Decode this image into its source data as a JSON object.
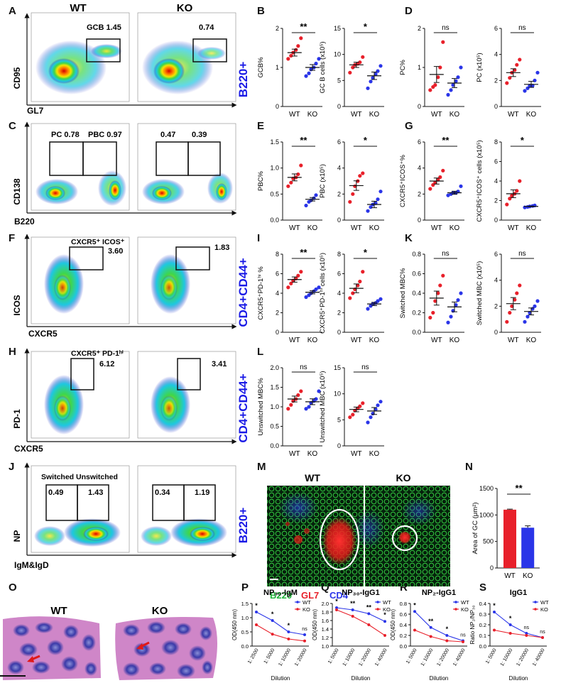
{
  "colors": {
    "wt": "#e8202a",
    "ko": "#2a35e8",
    "blue_label": "#1a1ae6",
    "green": "#1fb53a",
    "he_pink": "#cf86c8",
    "he_purple": "#3a2a9a",
    "black": "#111111"
  },
  "panel_letters": [
    "A",
    "B",
    "C",
    "D",
    "E",
    "F",
    "G",
    "H",
    "I",
    "J",
    "K",
    "L",
    "M",
    "N",
    "O",
    "P",
    "Q",
    "R",
    "S"
  ],
  "flow": {
    "col_wt": "WT",
    "col_ko": "KO",
    "side_labels": [
      "B220+",
      "CD4+CD44+",
      "CD4+CD44+",
      "B220+"
    ],
    "A": {
      "ylab": "CD95",
      "xlab": "GL7",
      "wt_gate": "GCB 1.45",
      "ko_gate": "0.74"
    },
    "C": {
      "ylab": "CD138",
      "xlab": "B220",
      "wt_gate1": "PC 0.78",
      "wt_gate2": "PBC 0.97",
      "ko_gate1": "0.47",
      "ko_gate2": "0.39"
    },
    "F": {
      "ylab": "ICOS",
      "xlab": "CXCR5",
      "wt_gate_name": "CXCR5⁺ ICOS⁺",
      "wt_gate": "3.60",
      "ko_gate": "1.83"
    },
    "H": {
      "ylab": "PD-1",
      "xlab": "CXCR5",
      "wt_gate_name": "CXCR5⁺ PD-1ʰⁱ",
      "wt_gate": "6.12",
      "ko_gate": "3.41"
    },
    "J": {
      "ylab": "NP",
      "xlab": "IgM&IgD",
      "wt_gate_name": "Switched Unswitched",
      "wt_gate1": "0.49",
      "wt_gate2": "1.43",
      "ko_gate1": "0.34",
      "ko_gate2": "1.19"
    }
  },
  "micro": {
    "M": {
      "wt": "WT",
      "ko": "KO",
      "legend": [
        "B220",
        "GL7",
        "CD4"
      ]
    },
    "O": {
      "wt": "WT",
      "ko": "KO"
    }
  },
  "chart_data": [
    {
      "id": "B1",
      "type": "scatter",
      "ylabel": "GCB%",
      "ylim": [
        0,
        2
      ],
      "yticks": [
        "0",
        "1",
        "2"
      ],
      "categories": [
        "WT",
        "KO"
      ],
      "sig": "**",
      "wt": [
        1.22,
        1.3,
        1.38,
        1.45,
        1.55,
        1.75
      ],
      "ko": [
        0.78,
        0.85,
        0.95,
        1.0,
        1.1,
        1.22
      ],
      "wt_mean": 1.38,
      "ko_mean": 1.0
    },
    {
      "id": "B2",
      "type": "scatter",
      "ylabel": "GC B cells (x10⁵)",
      "ylim": [
        0,
        15
      ],
      "yticks": [
        "0",
        "5",
        "10",
        "15"
      ],
      "categories": [
        "WT",
        "KO"
      ],
      "sig": "*",
      "wt": [
        6.5,
        7.5,
        8.0,
        8.2,
        8.5,
        9.5
      ],
      "ko": [
        3.5,
        4.8,
        5.5,
        6.2,
        6.8,
        7.8
      ],
      "wt_mean": 8.0,
      "ko_mean": 5.9
    },
    {
      "id": "D1",
      "type": "scatter",
      "ylabel": "PC%",
      "ylim": [
        0,
        2
      ],
      "yticks": [
        "0",
        "1",
        "2"
      ],
      "categories": [
        "WT",
        "KO"
      ],
      "sig": "ns",
      "wt": [
        0.42,
        0.5,
        0.55,
        0.75,
        1.0,
        1.65
      ],
      "ko": [
        0.3,
        0.42,
        0.55,
        0.65,
        0.75,
        1.0
      ],
      "wt_mean": 0.82,
      "ko_mean": 0.6
    },
    {
      "id": "D2",
      "type": "scatter",
      "ylabel": "PC (x10⁵)",
      "ylim": [
        0,
        6
      ],
      "yticks": [
        "0",
        "2",
        "4",
        "6"
      ],
      "categories": [
        "WT",
        "KO"
      ],
      "sig": "ns",
      "wt": [
        1.8,
        2.2,
        2.6,
        2.8,
        3.2,
        3.6
      ],
      "ko": [
        1.2,
        1.4,
        1.6,
        1.6,
        2.0,
        2.6
      ],
      "wt_mean": 2.6,
      "ko_mean": 1.7
    },
    {
      "id": "E1",
      "type": "scatter",
      "ylabel": "PBC%",
      "ylim": [
        0,
        1.5
      ],
      "yticks": [
        "0.0",
        "0.5",
        "1.0",
        "1.5"
      ],
      "categories": [
        "WT",
        "KO"
      ],
      "sig": "**",
      "wt": [
        0.65,
        0.72,
        0.8,
        0.82,
        0.88,
        1.05
      ],
      "ko": [
        0.28,
        0.35,
        0.38,
        0.42,
        0.48
      ],
      "wt_mean": 0.82,
      "ko_mean": 0.4
    },
    {
      "id": "E2",
      "type": "scatter",
      "ylabel": "PBC (x10⁵)",
      "ylim": [
        0,
        6
      ],
      "yticks": [
        "0",
        "2",
        "4",
        "6"
      ],
      "categories": [
        "WT",
        "KO"
      ],
      "sig": "*",
      "wt": [
        1.4,
        2.0,
        2.6,
        3.0,
        3.4,
        3.6
      ],
      "ko": [
        0.7,
        1.0,
        1.2,
        1.3,
        1.6,
        2.2
      ],
      "wt_mean": 2.65,
      "ko_mean": 1.2
    },
    {
      "id": "G1",
      "type": "scatter",
      "ylabel": "CXCR5⁺ICOS⁺%",
      "ylim": [
        0,
        6
      ],
      "yticks": [
        "0",
        "2",
        "4",
        "6"
      ],
      "categories": [
        "WT",
        "KO"
      ],
      "sig": "**",
      "wt": [
        2.4,
        2.7,
        2.9,
        3.1,
        3.3,
        3.8
      ],
      "ko": [
        1.9,
        2.0,
        2.1,
        2.1,
        2.2,
        2.6
      ],
      "wt_mean": 3.0,
      "ko_mean": 2.1
    },
    {
      "id": "G2",
      "type": "scatter",
      "ylabel": "CXCR5⁺ICOS⁺ cells (x10⁵)",
      "ylim": [
        0,
        8
      ],
      "yticks": [
        "0",
        "2",
        "4",
        "6",
        "8"
      ],
      "categories": [
        "WT",
        "KO"
      ],
      "sig": "*",
      "wt": [
        1.6,
        2.2,
        2.5,
        2.7,
        3.0,
        4.0
      ],
      "ko": [
        1.3,
        1.35,
        1.4,
        1.45,
        1.5
      ],
      "wt_mean": 2.7,
      "ko_mean": 1.4
    },
    {
      "id": "I1",
      "type": "scatter",
      "ylabel": "CXCR5⁺PD-1ʰⁱ %",
      "ylim": [
        0,
        8
      ],
      "yticks": [
        "0",
        "2",
        "4",
        "6",
        "8"
      ],
      "categories": [
        "WT",
        "KO"
      ],
      "sig": "**",
      "wt": [
        4.6,
        5.0,
        5.3,
        5.5,
        5.8,
        6.2
      ],
      "ko": [
        3.6,
        3.8,
        4.0,
        4.2,
        4.4,
        4.6
      ],
      "wt_mean": 5.4,
      "ko_mean": 4.1
    },
    {
      "id": "I2",
      "type": "scatter",
      "ylabel": "CXCR5⁺PD-1ʰⁱ cells (x10⁵)",
      "ylim": [
        0,
        8
      ],
      "yticks": [
        "0",
        "2",
        "4",
        "6",
        "8"
      ],
      "categories": [
        "WT",
        "KO"
      ],
      "sig": "*",
      "wt": [
        3.5,
        4.0,
        4.4,
        4.8,
        5.2,
        6.2
      ],
      "ko": [
        2.4,
        2.7,
        2.9,
        3.0,
        3.2,
        3.4
      ],
      "wt_mean": 4.5,
      "ko_mean": 2.9
    },
    {
      "id": "K1",
      "type": "scatter",
      "ylabel": "Switched MBC%",
      "ylim": [
        0,
        0.8
      ],
      "yticks": [
        "0.0",
        "0.2",
        "0.4",
        "0.6",
        "0.8"
      ],
      "categories": [
        "WT",
        "KO"
      ],
      "sig": "ns",
      "wt": [
        0.15,
        0.2,
        0.32,
        0.4,
        0.48,
        0.58
      ],
      "ko": [
        0.1,
        0.16,
        0.22,
        0.28,
        0.33,
        0.4
      ],
      "wt_mean": 0.35,
      "ko_mean": 0.26
    },
    {
      "id": "K2",
      "type": "scatter",
      "ylabel": "Switched MBC (x10⁵)",
      "ylim": [
        0,
        6
      ],
      "yticks": [
        "0",
        "2",
        "4",
        "6"
      ],
      "categories": [
        "WT",
        "KO"
      ],
      "sig": "ns",
      "wt": [
        0.8,
        1.5,
        2.0,
        2.5,
        3.0,
        3.6
      ],
      "ko": [
        0.8,
        1.2,
        1.5,
        1.8,
        2.0,
        2.4
      ],
      "wt_mean": 2.2,
      "ko_mean": 1.6
    },
    {
      "id": "L1",
      "type": "scatter",
      "ylabel": "Unswitched MBC%",
      "ylim": [
        0,
        2
      ],
      "yticks": [
        "0.0",
        "0.5",
        "1.0",
        "1.5",
        "2.0"
      ],
      "categories": [
        "WT",
        "KO"
      ],
      "sig": "ns",
      "wt": [
        0.95,
        1.05,
        1.15,
        1.2,
        1.3,
        1.4
      ],
      "ko": [
        0.95,
        1.0,
        1.1,
        1.15,
        1.2,
        1.4
      ],
      "wt_mean": 1.2,
      "ko_mean": 1.13
    },
    {
      "id": "L2",
      "type": "scatter",
      "ylabel": "Unswitched MBC (x10⁵)",
      "ylim": [
        0,
        15
      ],
      "yticks": [
        "0",
        "5",
        "10",
        "15"
      ],
      "categories": [
        "WT",
        "KO"
      ],
      "sig": "ns",
      "wt": [
        5.5,
        6.0,
        6.8,
        7.2,
        7.6,
        8.2
      ],
      "ko": [
        4.5,
        5.5,
        6.2,
        7.0,
        7.8,
        8.5
      ],
      "wt_mean": 7.0,
      "ko_mean": 6.7
    },
    {
      "id": "N",
      "type": "bar",
      "ylabel": "Area of GC (μm²)",
      "ylim": [
        0,
        1500
      ],
      "yticks": [
        "0",
        "500",
        "1000",
        "1500"
      ],
      "categories": [
        "WT",
        "KO"
      ],
      "values": [
        1100,
        760
      ],
      "errors": [
        10,
        35
      ],
      "sig": "**"
    },
    {
      "id": "P",
      "type": "line",
      "title": "NP₃₀-IgM",
      "ylabel": "OD(450 nm)",
      "xlabel": "Dilution",
      "ylim": [
        0,
        1.5
      ],
      "yticks": [
        "0.0",
        "0.5",
        "1.0",
        "1.5"
      ],
      "x": [
        "1: 2500",
        "1: 5000",
        "1: 10000",
        "1: 20000"
      ],
      "series": [
        {
          "name": "WT",
          "values": [
            1.2,
            0.9,
            0.5,
            0.4
          ]
        },
        {
          "name": "KO",
          "values": [
            0.75,
            0.42,
            0.25,
            0.18
          ]
        }
      ],
      "sig": [
        "*",
        "*",
        "*",
        "ns"
      ]
    },
    {
      "id": "Q",
      "type": "line",
      "title": "NP₃₀-IgG1",
      "ylabel": "OD(450 nm)",
      "xlabel": "Dilution",
      "ylim": [
        1.0,
        2.0
      ],
      "yticks": [
        "1.0",
        "1.2",
        "1.4",
        "1.6",
        "1.8",
        "2.0"
      ],
      "x": [
        "1: 5000",
        "1: 10000",
        "1: 20000",
        "1: 40000"
      ],
      "series": [
        {
          "name": "WT",
          "values": [
            1.9,
            1.85,
            1.76,
            1.58
          ]
        },
        {
          "name": "KO",
          "values": [
            1.85,
            1.7,
            1.5,
            1.25
          ]
        }
      ],
      "sig": [
        "*",
        "**",
        "**",
        "*"
      ]
    },
    {
      "id": "R",
      "type": "line",
      "title": "NP₂-IgG1",
      "ylabel": "OD(450 nm)",
      "xlabel": "Dilution",
      "ylim": [
        0,
        0.8
      ],
      "yticks": [
        "0.0",
        "0.2",
        "0.4",
        "0.6",
        "0.8"
      ],
      "x": [
        "1: 5000",
        "1: 10000",
        "1: 20000",
        "1: 40000"
      ],
      "series": [
        {
          "name": "WT",
          "values": [
            0.65,
            0.35,
            0.2,
            0.1
          ]
        },
        {
          "name": "KO",
          "values": [
            0.3,
            0.18,
            0.1,
            0.08
          ]
        }
      ],
      "sig": [
        "*",
        "**",
        "*",
        "ns"
      ]
    },
    {
      "id": "S",
      "type": "line",
      "title": "IgG1",
      "ylabel": "Ratio NP₂/NP₃₀",
      "xlabel": "Dilution",
      "ylim": [
        0,
        0.4
      ],
      "yticks": [
        "0.0",
        "0.1",
        "0.2",
        "0.3",
        "0.4"
      ],
      "x": [
        "1: 5000",
        "1: 10000",
        "1: 20000",
        "1: 40000"
      ],
      "series": [
        {
          "name": "WT",
          "values": [
            0.32,
            0.2,
            0.12,
            0.08
          ]
        },
        {
          "name": "KO",
          "values": [
            0.15,
            0.12,
            0.1,
            0.08
          ]
        }
      ],
      "sig": [
        "*",
        "*",
        "ns",
        "ns"
      ]
    }
  ]
}
